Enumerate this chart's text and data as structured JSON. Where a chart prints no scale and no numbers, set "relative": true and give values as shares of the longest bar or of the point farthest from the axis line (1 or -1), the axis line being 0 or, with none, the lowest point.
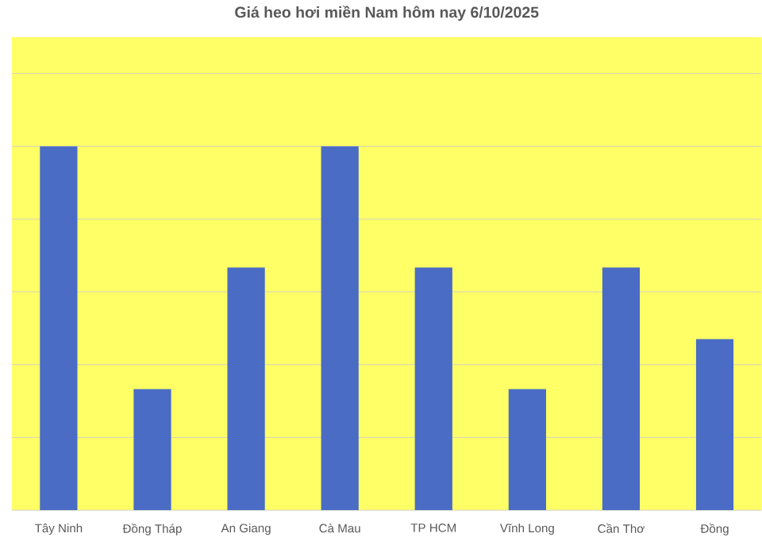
{
  "chart_data": {
    "type": "bar",
    "title": "Giá heo hơi miền Nam hôm nay 6/10/2025",
    "categories": [
      "Tây Ninh",
      "Đồng Tháp",
      "An Giang",
      "Cà Mau",
      "TP HCM",
      "Vĩnh Long",
      "Cần Thơ",
      "Đồng"
    ],
    "values": [
      1,
      0.333,
      0.667,
      1,
      0.667,
      0.333,
      0.667,
      0.47
    ],
    "color": "#4a6cc4",
    "relative": true,
    "grid": "y"
  }
}
